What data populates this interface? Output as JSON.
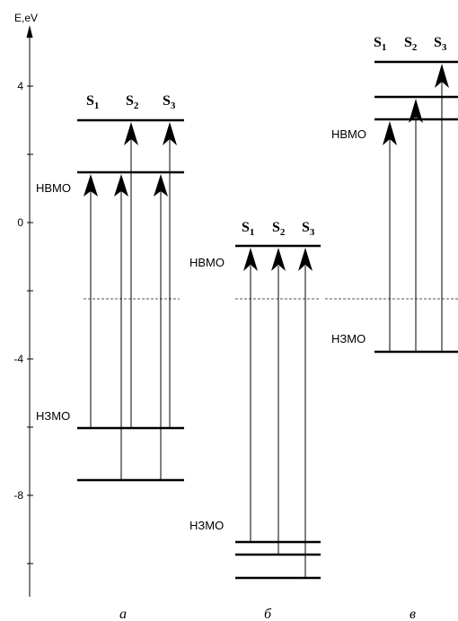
{
  "axis": {
    "label": "E,eV",
    "ticks": [
      {
        "value": 4,
        "label": "4"
      },
      {
        "value": 2,
        "label": ""
      },
      {
        "value": 0,
        "label": "0"
      },
      {
        "value": -2,
        "label": ""
      },
      {
        "value": -4,
        "label": "-4"
      },
      {
        "value": -6,
        "label": ""
      },
      {
        "value": -8,
        "label": "-8"
      },
      {
        "value": -10,
        "label": ""
      }
    ]
  },
  "reference_level": -2.25,
  "panels": [
    {
      "id": "a",
      "label": "а",
      "levels": [
        3.0,
        1.5,
        -6.0,
        -7.5
      ],
      "state_labels": {
        "main": [
          "S",
          "S",
          "S"
        ],
        "sub": [
          "1",
          "2",
          "3"
        ]
      },
      "lumo_label": "НВМО",
      "homo_label": "НЗМО"
    },
    {
      "id": "b",
      "label": "б",
      "levels": [
        -0.7,
        -9.3,
        -9.7,
        -10.5
      ],
      "state_labels": {
        "main": [
          "S",
          "S",
          "S"
        ],
        "sub": [
          "1",
          "2",
          "3"
        ]
      },
      "lumo_label": "НВМО",
      "homo_label": "НЗМО"
    },
    {
      "id": "c",
      "label": "в",
      "levels": [
        4.75,
        3.7,
        3.05,
        -3.8
      ],
      "state_labels": {
        "main": [
          "S",
          "S",
          "S"
        ],
        "sub": [
          "1",
          "2",
          "3"
        ]
      },
      "lumo_label": "НВМО",
      "homo_label": "НЗМО"
    }
  ]
}
